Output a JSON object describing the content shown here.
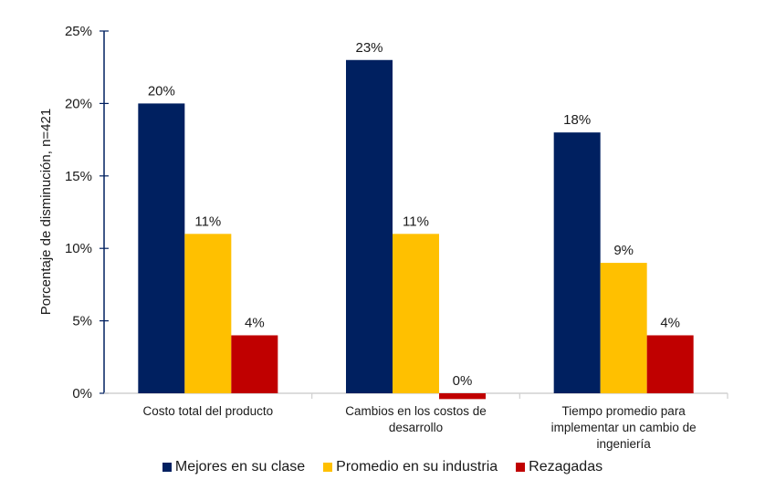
{
  "chart_data": {
    "type": "bar",
    "title": "",
    "xlabel": "",
    "ylabel": "Porcentaje de disminución, n=421",
    "ylim": [
      0,
      25
    ],
    "yticks": [
      0,
      5,
      10,
      15,
      20,
      25
    ],
    "ytick_labels": [
      "0%",
      "5%",
      "10%",
      "15%",
      "20%",
      "25%"
    ],
    "grid": false,
    "legend_position": "bottom",
    "categories": [
      [
        "Costo total del producto"
      ],
      [
        "Cambios en los costos de",
        "desarrollo"
      ],
      [
        "Tiempo promedio para",
        "implementar un cambio de",
        "ingeniería"
      ]
    ],
    "series": [
      {
        "name": "Mejores en su clase",
        "color": "#002060",
        "values": [
          20,
          23,
          18
        ],
        "labels": [
          "20%",
          "23%",
          "18%"
        ]
      },
      {
        "name": "Promedio en su industria",
        "color": "#FFC000",
        "values": [
          11,
          11,
          9
        ],
        "labels": [
          "11%",
          "11%",
          "9%"
        ]
      },
      {
        "name": "Rezagadas",
        "color": "#C00000",
        "values": [
          4,
          -0.4,
          4
        ],
        "labels": [
          "4%",
          "0%",
          "4%"
        ]
      }
    ]
  }
}
